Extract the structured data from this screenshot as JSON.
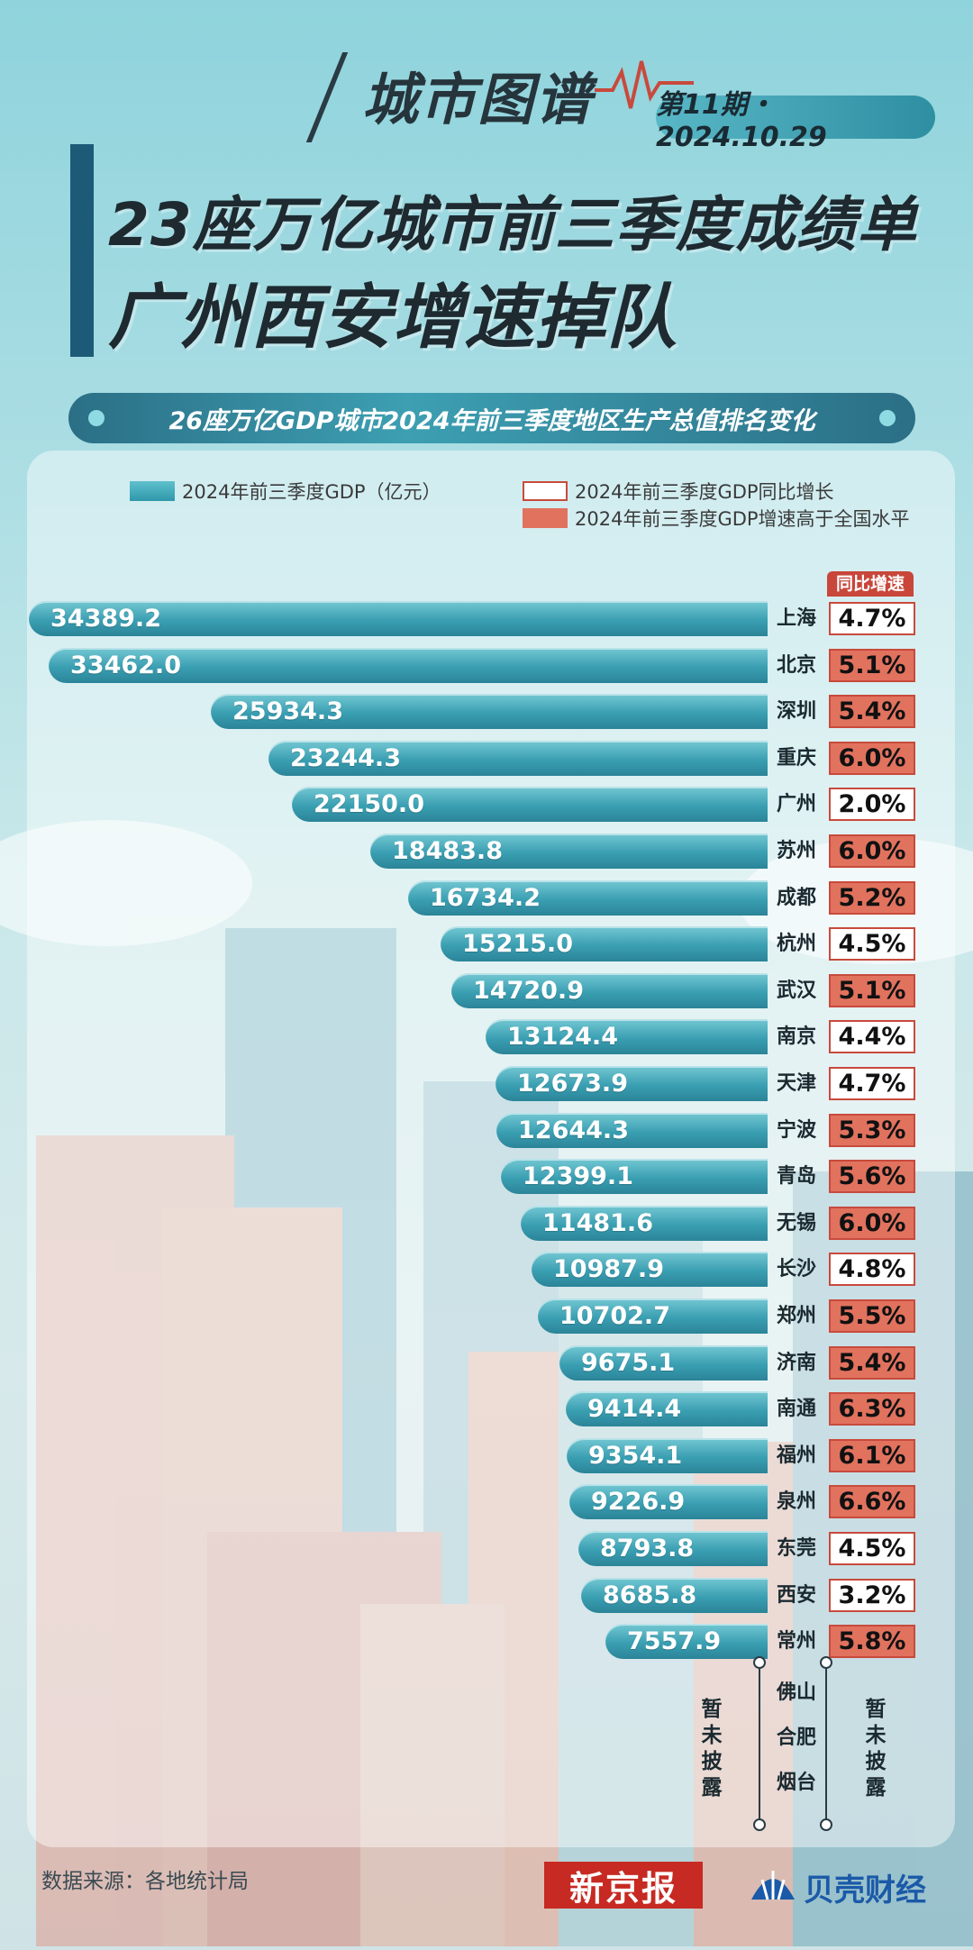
{
  "header": {
    "brand": "城市图谱",
    "issue": "第11期・2024.10.29",
    "headline_line1": "23座万亿城市前三季度成绩单",
    "headline_line2": "广州西安增速掉队",
    "subtitle": "26座万亿GDP城市2024年前三季度地区生产总值排名变化"
  },
  "legend": {
    "gdp": "2024年前三季度GDP（亿元）",
    "growth": "2024年前三季度GDP同比增长",
    "above_national": "2024年前三季度GDP增速高于全国水平"
  },
  "colors": {
    "bar": "#3a9fb2",
    "above_national": "#e1725e",
    "border": "#c84a3c"
  },
  "growth_header": "同比增速",
  "chart_data": {
    "type": "bar",
    "orientation": "horizontal",
    "unit": "亿元",
    "categories": [
      "上海",
      "北京",
      "深圳",
      "重庆",
      "广州",
      "苏州",
      "成都",
      "杭州",
      "武汉",
      "南京",
      "天津",
      "宁波",
      "青岛",
      "无锡",
      "长沙",
      "郑州",
      "济南",
      "南通",
      "福州",
      "泉州",
      "东莞",
      "西安",
      "常州"
    ],
    "values": [
      34389.2,
      33462.0,
      25934.3,
      23244.3,
      22150.0,
      18483.8,
      16734.2,
      15215.0,
      14720.9,
      13124.4,
      12673.9,
      12644.3,
      12399.1,
      11481.6,
      10987.9,
      10702.7,
      9675.1,
      9414.4,
      9354.1,
      9226.9,
      8793.8,
      8685.8,
      7557.9
    ],
    "value_labels": [
      "34389.2",
      "33462.0",
      "25934.3",
      "23244.3",
      "22150.0",
      "18483.8",
      "16734.2",
      "15215.0",
      "14720.9",
      "13124.4",
      "12673.9",
      "12644.3",
      "12399.1",
      "11481.6",
      "10987.9",
      "10702.7",
      "9675.1",
      "9414.4",
      "9354.1",
      "9226.9",
      "8793.8",
      "8685.8",
      "7557.9"
    ],
    "growth": [
      "4.7%",
      "5.1%",
      "5.4%",
      "6.0%",
      "2.0%",
      "6.0%",
      "5.2%",
      "4.5%",
      "5.1%",
      "4.4%",
      "4.7%",
      "5.3%",
      "5.6%",
      "6.0%",
      "4.8%",
      "5.5%",
      "5.4%",
      "6.3%",
      "6.1%",
      "6.6%",
      "4.5%",
      "3.2%",
      "5.8%"
    ],
    "above_national": [
      false,
      true,
      true,
      true,
      false,
      true,
      true,
      false,
      true,
      false,
      false,
      true,
      true,
      true,
      false,
      true,
      true,
      true,
      true,
      true,
      false,
      false,
      true
    ]
  },
  "pending": {
    "cities": [
      "佛山",
      "合肥",
      "烟台"
    ],
    "gdp_note": "暂未披露",
    "growth_note": "暂未披露"
  },
  "footer": {
    "source": "数据来源：各地统计局",
    "logo_xjb": "新京报",
    "logo_bk": "贝壳财经"
  }
}
